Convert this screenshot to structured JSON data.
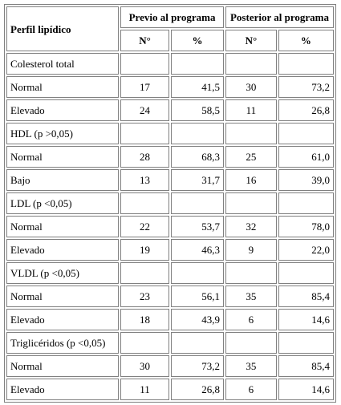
{
  "header": {
    "col0": "Perfil lipídico",
    "group1": "Previo al programa",
    "group2": "Posterior al programa",
    "n_label": "N°",
    "pct_label": "%"
  },
  "rows": [
    {
      "label": "Colesterol total",
      "section": true
    },
    {
      "label": "Normal",
      "pre_n": "17",
      "pre_pct": "41,5",
      "post_n": "30",
      "post_pct": "73,2"
    },
    {
      "label": "Elevado",
      "pre_n": "24",
      "pre_pct": "58,5",
      "post_n": "11",
      "post_pct": "26,8"
    },
    {
      "label": "HDL (p >0,05)",
      "section": true
    },
    {
      "label": "Normal",
      "pre_n": "28",
      "pre_pct": "68,3",
      "post_n": "25",
      "post_pct": "61,0"
    },
    {
      "label": "Bajo",
      "pre_n": "13",
      "pre_pct": "31,7",
      "post_n": "16",
      "post_pct": "39,0"
    },
    {
      "label": "LDL (p <0,05)",
      "section": true
    },
    {
      "label": "Normal",
      "pre_n": "22",
      "pre_pct": "53,7",
      "post_n": "32",
      "post_pct": "78,0"
    },
    {
      "label": "Elevado",
      "pre_n": "19",
      "pre_pct": "46,3",
      "post_n": "9",
      "post_pct": "22,0"
    },
    {
      "label": "VLDL (p <0,05)",
      "section": true
    },
    {
      "label": "Normal",
      "pre_n": "23",
      "pre_pct": "56,1",
      "post_n": "35",
      "post_pct": "85,4"
    },
    {
      "label": "Elevado",
      "pre_n": "18",
      "pre_pct": "43,9",
      "post_n": "6",
      "post_pct": "14,6"
    },
    {
      "label": "Triglicéridos (p <0,05)",
      "section": true
    },
    {
      "label": "Normal",
      "pre_n": "30",
      "pre_pct": "73,2",
      "post_n": "35",
      "post_pct": "85,4"
    },
    {
      "label": "Elevado",
      "pre_n": "11",
      "pre_pct": "26,8",
      "post_n": "6",
      "post_pct": "14,6"
    }
  ]
}
